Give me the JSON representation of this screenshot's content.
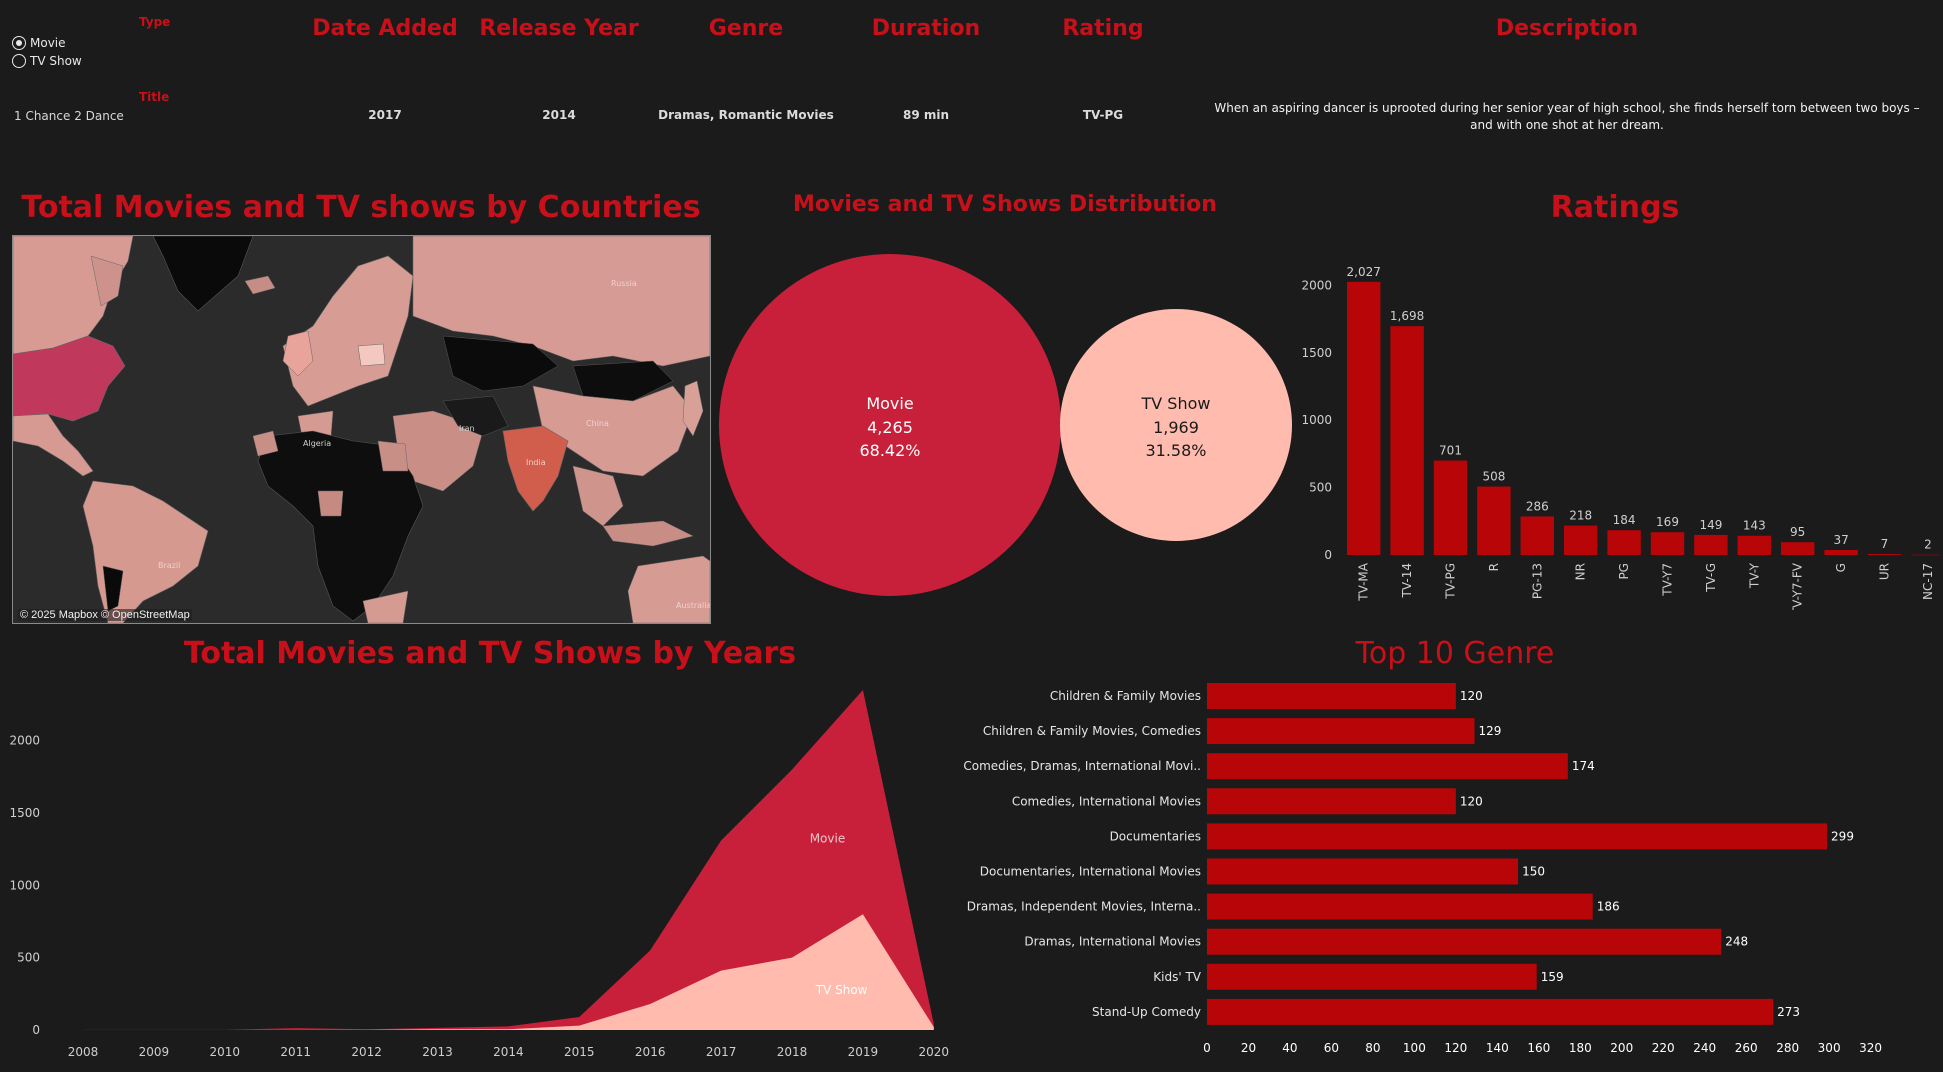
{
  "filters": {
    "type_label": "Type",
    "options": [
      {
        "label": "Movie",
        "selected": true
      },
      {
        "label": "TV Show",
        "selected": false
      }
    ],
    "title_label": "Title"
  },
  "details": {
    "headers": {
      "date_added": "Date Added",
      "release_year": "Release Year",
      "genre": "Genre",
      "duration": "Duration",
      "rating": "Rating",
      "description": "Description"
    },
    "row": {
      "title": "1 Chance 2 Dance",
      "date_added": "2017",
      "release_year": "2014",
      "genre": "Dramas, Romantic Movies",
      "duration": "89 min",
      "rating": "TV-PG",
      "description": "When an aspiring dancer is uprooted during her senior year of high school, she finds herself torn between two boys – and with one shot at her dream."
    }
  },
  "map": {
    "title": "Total Movies and TV shows by Countries",
    "attribution": "© 2025 Mapbox © OpenStreetMap",
    "labels": [
      "Russia",
      "Algeria",
      "Iran",
      "China",
      "India",
      "Brazil",
      "Australia"
    ]
  },
  "colors": {
    "accent": "#c8101a",
    "bar": "#b80508",
    "movie": "#c8203a",
    "tvshow": "#ffbcae",
    "background": "#1b1b1b"
  },
  "chart_data": [
    {
      "id": "distribution",
      "type": "pie",
      "title": "Movies and TV Shows Distribution",
      "categories": [
        "Movie",
        "TV Show"
      ],
      "values": [
        4265,
        1969
      ],
      "labels": [
        "4,265",
        "1,969"
      ],
      "percents": [
        "68.42%",
        "31.58%"
      ]
    },
    {
      "id": "ratings",
      "type": "bar",
      "title": "Ratings",
      "categories": [
        "TV-MA",
        "TV-14",
        "TV-PG",
        "R",
        "PG-13",
        "NR",
        "PG",
        "TV-Y7",
        "TV-G",
        "TV-Y",
        "TV-Y7-FV",
        "G",
        "UR",
        "NC-17"
      ],
      "values": [
        2027,
        1698,
        701,
        508,
        286,
        218,
        184,
        169,
        149,
        143,
        95,
        37,
        7,
        2
      ],
      "value_labels": [
        "2,027",
        "1,698",
        "701",
        "508",
        "286",
        "218",
        "184",
        "169",
        "149",
        "143",
        "95",
        "37",
        "7",
        "2"
      ],
      "ylim": [
        0,
        2100
      ],
      "yticks": [
        0,
        500,
        1000,
        1500,
        2000
      ],
      "grid": false
    },
    {
      "id": "years",
      "type": "area",
      "title": "Total Movies and TV Shows by Years",
      "x": [
        2008,
        2009,
        2010,
        2011,
        2012,
        2013,
        2014,
        2015,
        2016,
        2017,
        2018,
        2019,
        2020
      ],
      "series": [
        {
          "name": "Movie",
          "values": [
            1,
            1,
            1,
            13,
            4,
            10,
            20,
            60,
            370,
            900,
            1300,
            1550,
            20
          ]
        },
        {
          "name": "TV Show",
          "values": [
            0,
            0,
            0,
            0,
            1,
            5,
            5,
            30,
            180,
            410,
            500,
            800,
            20
          ]
        }
      ],
      "stacked": true,
      "ylim": [
        0,
        2350
      ],
      "yticks": [
        0,
        500,
        1000,
        1500,
        2000
      ],
      "grid": false
    },
    {
      "id": "genres",
      "type": "bar",
      "orientation": "horizontal",
      "title": "Top 10 Genre",
      "categories": [
        "Children & Family Movies",
        "Children & Family Movies, Comedies",
        "Comedies, Dramas, International Movi..",
        "Comedies, International Movies",
        "Documentaries",
        "Documentaries, International Movies",
        "Dramas, Independent Movies, Interna..",
        "Dramas, International Movies",
        "Kids' TV",
        "Stand-Up Comedy"
      ],
      "values": [
        120,
        129,
        174,
        120,
        299,
        150,
        186,
        248,
        159,
        273
      ],
      "xlim": [
        0,
        320
      ],
      "xticks": [
        0,
        20,
        40,
        60,
        80,
        100,
        120,
        140,
        160,
        180,
        200,
        220,
        240,
        260,
        280,
        300,
        320
      ],
      "grid": false
    }
  ]
}
